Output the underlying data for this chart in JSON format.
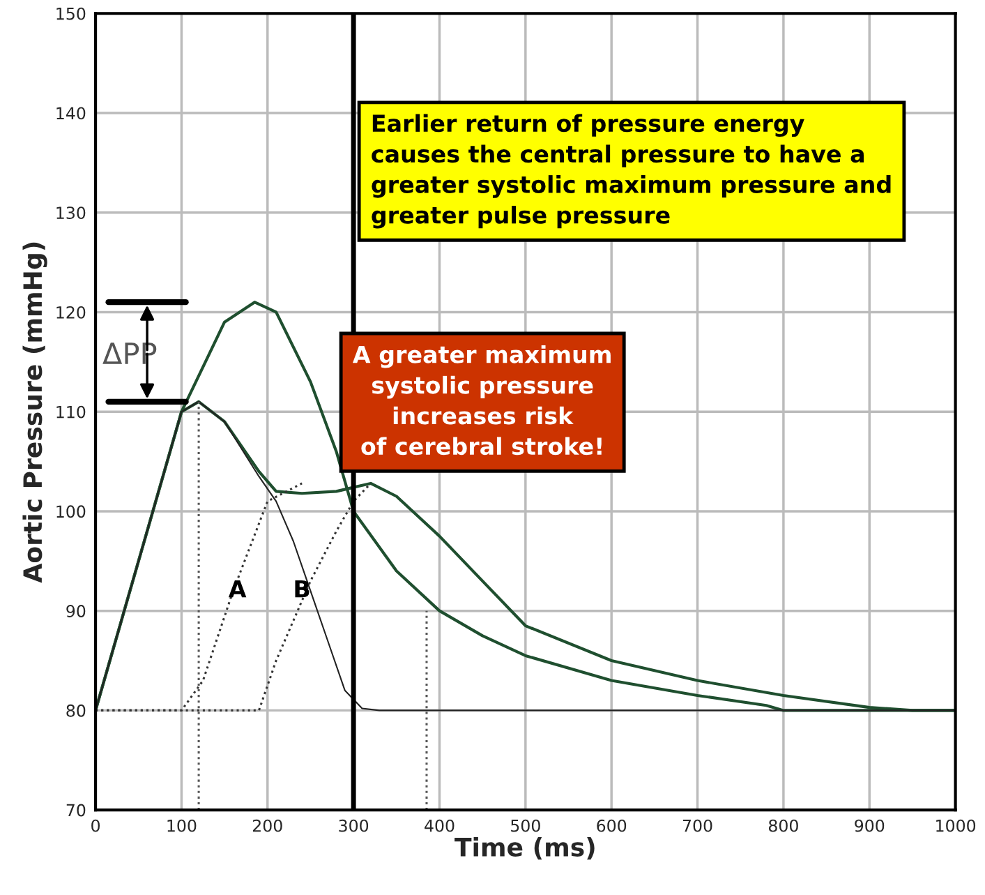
{
  "chart_data": {
    "type": "line",
    "xlabel": "Time (ms)",
    "ylabel": "Aortic Pressure (mmHg)",
    "xlim": [
      0,
      1000
    ],
    "ylim": [
      70,
      150
    ],
    "xticks": [
      0,
      100,
      200,
      300,
      400,
      500,
      600,
      700,
      800,
      900,
      1000
    ],
    "yticks": [
      70,
      80,
      90,
      100,
      110,
      120,
      130,
      140,
      150
    ],
    "grid": true,
    "legend": false,
    "marker": "none",
    "series": [
      {
        "color": "#1f4f2f",
        "line_style": "solid",
        "x": [
          0,
          50,
          100,
          150,
          185,
          210,
          250,
          280,
          300,
          350,
          400,
          450,
          500,
          600,
          700,
          780,
          800,
          1000
        ],
        "values": [
          80,
          95,
          110,
          119,
          121,
          120,
          113,
          106,
          100,
          94,
          90,
          87.5,
          85.5,
          83,
          81.5,
          80.5,
          80,
          80
        ]
      },
      {
        "color": "#1f4f2f",
        "line_style": "solid",
        "x": [
          0,
          50,
          100,
          120,
          150,
          190,
          210,
          240,
          280,
          320,
          350,
          400,
          450,
          500,
          600,
          700,
          800,
          900,
          950,
          1000
        ],
        "values": [
          80,
          95,
          110,
          111,
          109,
          104,
          102,
          101.8,
          102,
          102.8,
          101.5,
          97.5,
          93,
          88.5,
          85,
          83,
          81.5,
          80.3,
          80,
          80
        ]
      },
      {
        "color": "#222222",
        "line_style": "solid",
        "x": [
          0,
          100,
          120,
          150,
          190,
          210,
          230,
          250,
          270,
          290,
          310,
          330,
          1000
        ],
        "values": [
          80,
          110,
          111,
          109,
          103.5,
          101,
          97,
          92,
          87,
          82,
          80.2,
          80,
          80
        ]
      },
      {
        "color": "#333333",
        "line_style": "dotted",
        "x": [
          0,
          100,
          125,
          160,
          200,
          240
        ],
        "values": [
          80,
          80,
          83,
          92,
          101,
          102.8
        ]
      },
      {
        "color": "#333333",
        "line_style": "dotted",
        "x": [
          0,
          190,
          210,
          250,
          280,
          300,
          320
        ],
        "values": [
          80,
          80,
          85,
          93,
          98,
          101,
          102.8
        ]
      },
      {
        "color": "#555555",
        "line_style": "dotted",
        "x": [
          120,
          120
        ],
        "values": [
          70,
          111
        ]
      },
      {
        "color": "#555555",
        "line_style": "dotted",
        "x": [
          385,
          385
        ],
        "values": [
          70,
          90
        ]
      }
    ],
    "ref_lines": [
      {
        "axis": "x",
        "value": 300,
        "color": "#000000"
      }
    ],
    "annotations": [
      "Earlier return of pressure energy\ncauses the central pressure to have a\ngreater systolic maximum pressure and\ngreater pulse pressure",
      "A greater maximum\nsystolic pressure\nincreases risk\nof cerebral stroke!",
      {
        "text": "A",
        "x": 165,
        "y": 92
      },
      {
        "text": "B",
        "x": 240,
        "y": 92
      },
      "ΔPP"
    ]
  }
}
